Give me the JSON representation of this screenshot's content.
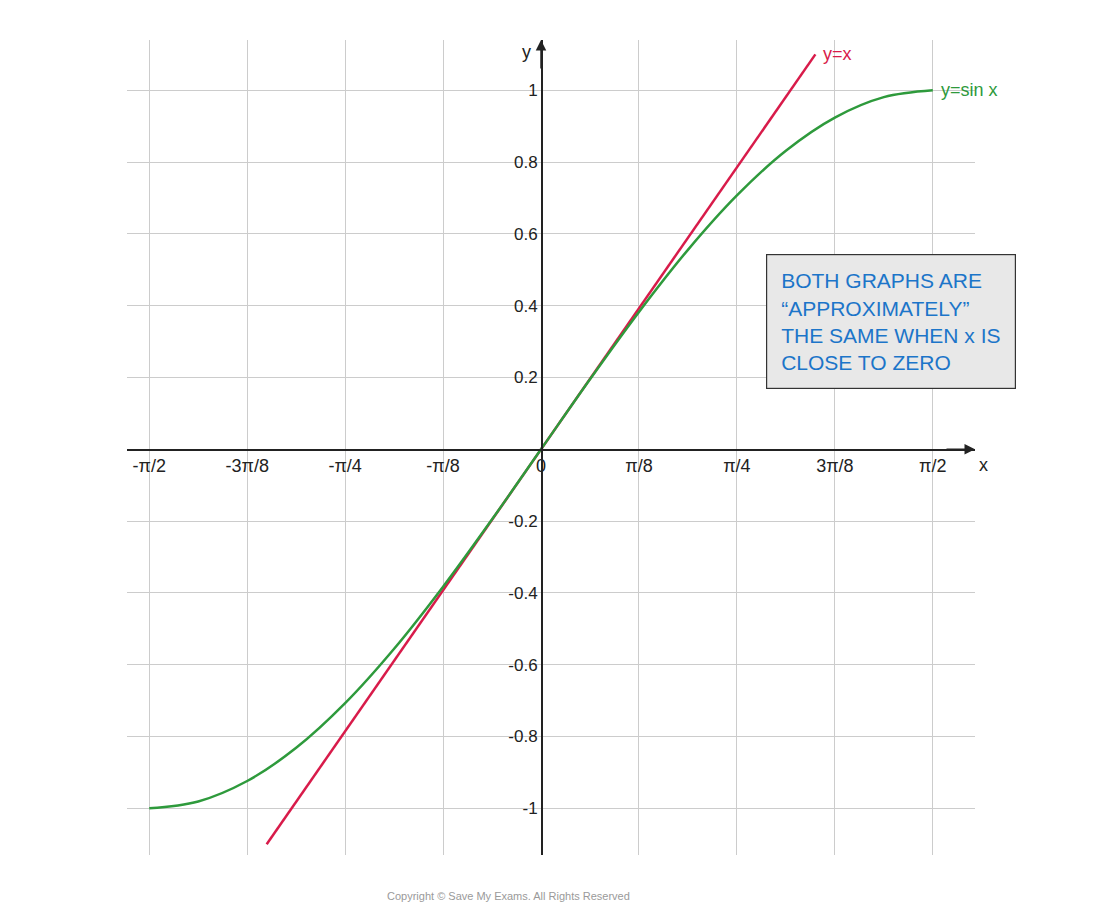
{
  "chart_data": {
    "type": "line",
    "x_label": "x",
    "y_label": "y",
    "series": [
      {
        "name": "y=x",
        "color": "#d81b4a",
        "line_style": "solid",
        "x": [
          -1.1,
          1.1
        ],
        "values": [
          -1.1,
          1.1
        ]
      },
      {
        "name": "y=sin x",
        "color": "#2e9a3c",
        "line_style": "solid",
        "x": [
          -1.5708,
          -1.3744,
          -1.1781,
          -0.9817,
          -0.7854,
          -0.589,
          -0.3927,
          -0.1963,
          0,
          0.1963,
          0.3927,
          0.589,
          0.7854,
          0.9817,
          1.1781,
          1.3744,
          1.5708
        ],
        "values": [
          -1,
          -0.9808,
          -0.9239,
          -0.8315,
          -0.7071,
          -0.5556,
          -0.3827,
          -0.1951,
          0,
          0.1951,
          0.3827,
          0.5556,
          0.7071,
          0.8315,
          0.9239,
          0.9808,
          1
        ]
      }
    ],
    "xlim": [
      -1.66,
      1.74
    ],
    "ylim": [
      -1.13,
      1.14
    ],
    "xticks": [
      {
        "value": -1.5708,
        "label": "-π/2"
      },
      {
        "value": -1.1781,
        "label": "-3π/8"
      },
      {
        "value": -0.7854,
        "label": "-π/4"
      },
      {
        "value": -0.3927,
        "label": "-π/8"
      },
      0,
      {
        "value": 0.3927,
        "label": "π/8"
      },
      {
        "value": 0.7854,
        "label": "π/4"
      },
      {
        "value": 1.1781,
        "label": "3π/8"
      },
      {
        "value": 1.5708,
        "label": "π/2"
      }
    ],
    "yticks": [
      -1,
      -0.8,
      -0.6,
      -0.4,
      -0.2,
      0.2,
      0.4,
      0.6,
      0.8,
      1
    ],
    "grid": true,
    "annotations": [
      {
        "lines": [
          "BOTH GRAPHS ARE",
          "“APPROXIMATELY”",
          "THE SAME WHEN x IS",
          "CLOSE TO ZERO"
        ]
      }
    ],
    "footer": "Copyright © Save My Exams. All Rights Reserved"
  }
}
